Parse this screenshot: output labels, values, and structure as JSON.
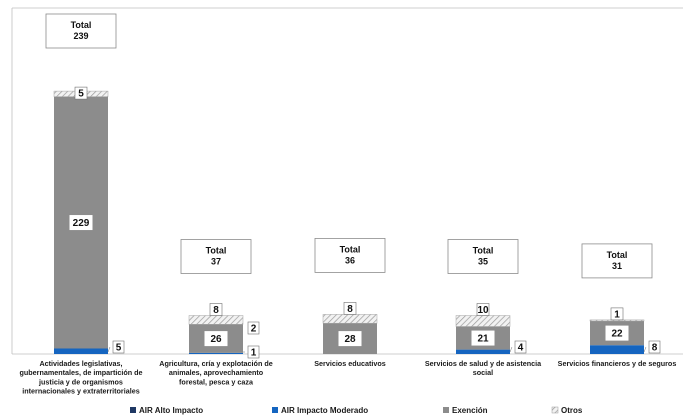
{
  "chart_data": {
    "type": "bar",
    "stacked": true,
    "categories": [
      "Actividades legislativas, gubernamentales, de impartición de justicia y de organismos internacionales y extraterritoriales",
      "Agricultura, cría y explotación de animales, aprovechamiento forestal, pesca y caza",
      "Servicios educativos",
      "Servicios de salud y de asistencia social",
      "Servicios financieros y de seguros"
    ],
    "category_lines": [
      [
        "Actividades legislativas,",
        "gubernamentales, de impartición de",
        "justicia y de organismos",
        "internacionales y extraterritoriales"
      ],
      [
        "Agricultura, cría y explotación de",
        "animales, aprovechamiento",
        "forestal, pesca y caza"
      ],
      [
        "Servicios educativos"
      ],
      [
        "Servicios de salud y de asistencia",
        "social"
      ],
      [
        "Servicios financieros y de seguros"
      ]
    ],
    "series": [
      {
        "name": "AIR Alto Impacto",
        "values": [
          0,
          0,
          0,
          0,
          0
        ],
        "color": "#1f3864"
      },
      {
        "name": "AIR Impacto Moderado",
        "values": [
          5,
          1,
          0,
          4,
          8
        ],
        "color": "#1565c0"
      },
      {
        "name": "Exención",
        "values": [
          229,
          26,
          28,
          21,
          22
        ],
        "color": "#8c8c8c"
      },
      {
        "name": "Otros",
        "values": [
          5,
          8,
          8,
          10,
          1
        ],
        "color": "#d9d9d9"
      }
    ],
    "totals": [
      239,
      37,
      36,
      35,
      31
    ],
    "total_label": "Total",
    "ylim": [
      0,
      250
    ],
    "grid": false,
    "legend_position": "bottom"
  }
}
